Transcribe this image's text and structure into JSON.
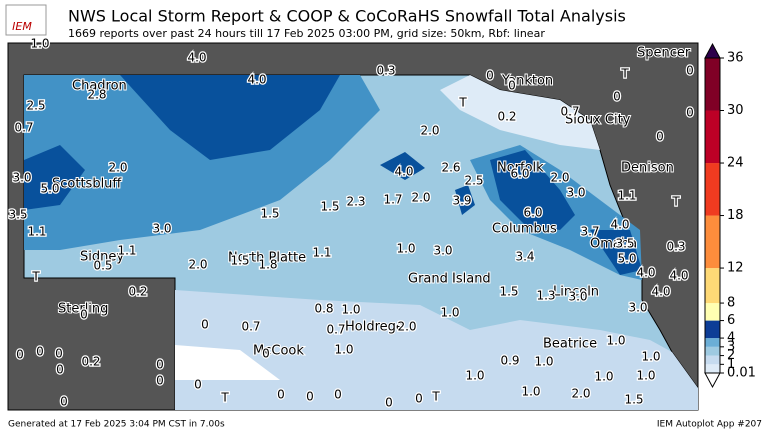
{
  "header": {
    "logo": "IEM",
    "title": "NWS Local Storm Report & COOP & CoCoRaHS Snowfall Total Analysis",
    "subtitle": "1669 reports over past 24 hours till 17 Feb 2025 03:00 PM, grid size: 50km, Rbf: linear"
  },
  "colorbar": {
    "ticks": [
      0.01,
      1,
      2,
      3,
      4,
      6,
      8,
      12,
      18,
      24,
      30,
      36
    ],
    "colors": [
      "#deebf7",
      "#c6dbef",
      "#9ecae1",
      "#6baed6",
      "#0d3d96",
      "#ffffb2",
      "#fed976",
      "#fd8d3c",
      "#f03b20",
      "#bd0026",
      "#800026"
    ]
  },
  "places": [
    "Chadron",
    "Scottsbluff",
    "Sidney",
    "North Platte",
    "Yankton",
    "Sioux City",
    "Norfolk",
    "Columbus",
    "Grand Island",
    "Denison",
    "Omaha",
    "Lincoln",
    "Holdrege",
    "McCook",
    "Beatrice",
    "Sterling",
    "Spencer"
  ],
  "stations": [
    "1.0",
    "4.0",
    "4.0",
    "0.3",
    "0",
    "0",
    "T",
    "0.2",
    "0.7",
    "0",
    "T",
    "0",
    "0",
    "0",
    "2.5",
    "0.7",
    "2.8",
    "2.0",
    "2.0",
    "3.0",
    "5.0",
    "4.0",
    "2.6",
    "2.5",
    "6.0",
    "2.0",
    "3.0",
    "1.1",
    "T",
    "3.5",
    "1.5",
    "1.5",
    "2.3",
    "1.7",
    "2.0",
    "3.9",
    "6.0",
    "4.0",
    "3.7",
    "1.1",
    "3.0",
    "1.1",
    "1.0",
    "3.0",
    "3.5",
    "0.3",
    "5.0",
    "0.5",
    "2.0",
    "1.5",
    "1.8",
    "1.1",
    "3.4",
    "4.0",
    "4.0",
    "T",
    "0.2",
    "4.0",
    "1.5",
    "1.3",
    "3.0",
    "0",
    "0.8",
    "1.0",
    "3.0",
    "1.0",
    "0",
    "0.7",
    "0.7",
    "2.0",
    "0",
    "0",
    "0",
    "0",
    "0.2",
    "0",
    "0",
    "0",
    "1.0",
    "1.0",
    "0.9",
    "1.0",
    "1.0",
    "1.0",
    "1.0",
    "1.0",
    "0",
    "T",
    "0",
    "0",
    "0",
    "0",
    "0",
    "T",
    "1.0",
    "2.0",
    "1.5",
    "0"
  ],
  "footer": {
    "generated": "Generated at 17 Feb 2025 3:04 PM CST in 7.00s",
    "app": "IEM Autoplot App #207"
  }
}
